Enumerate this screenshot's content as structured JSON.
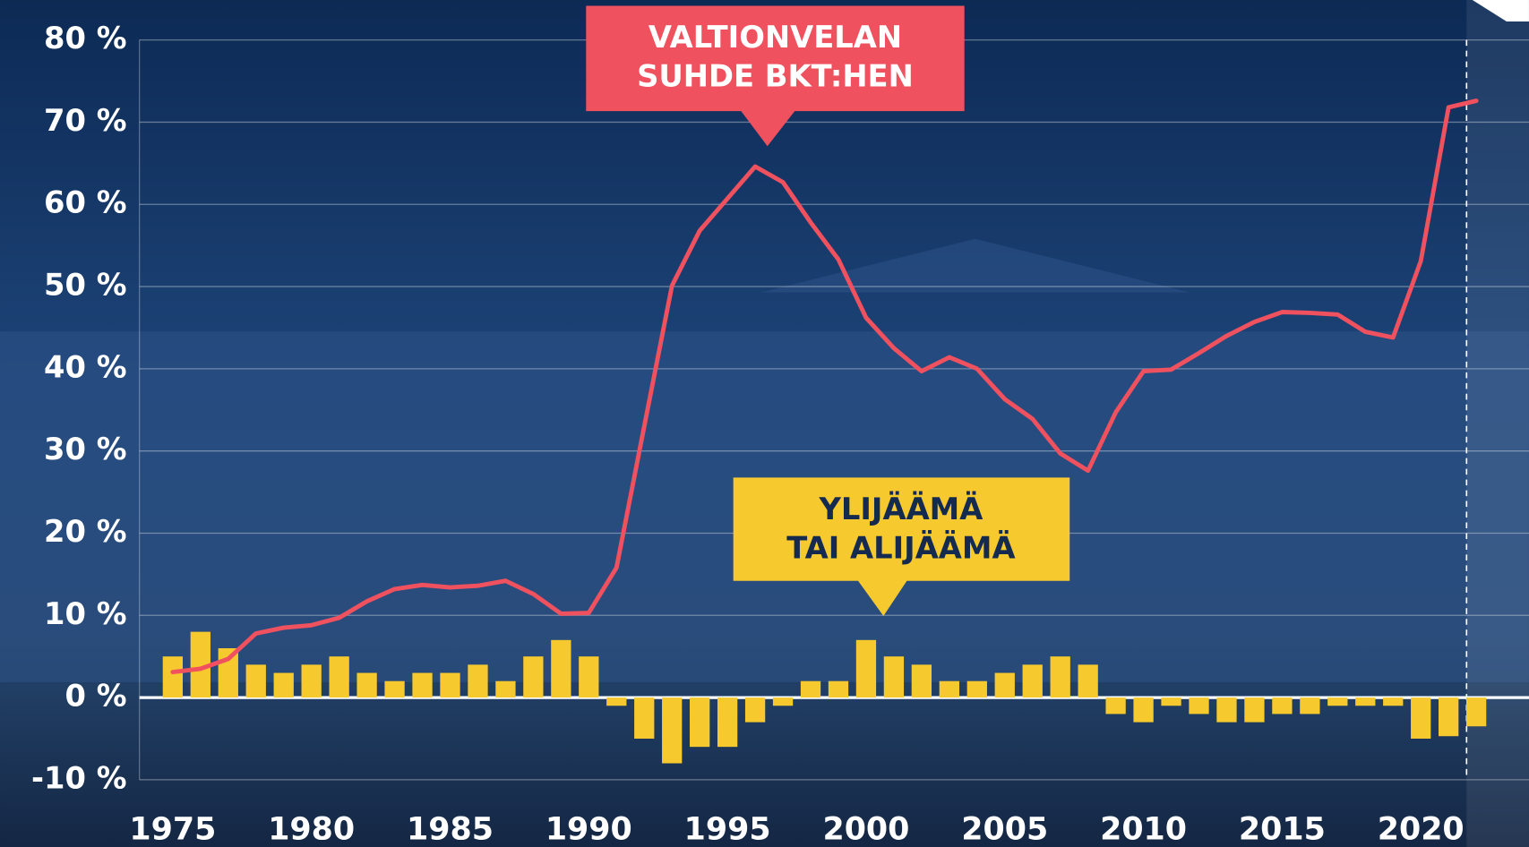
{
  "chart_data": {
    "type": "combo",
    "x": [
      1975,
      1976,
      1977,
      1978,
      1979,
      1980,
      1981,
      1982,
      1983,
      1984,
      1985,
      1986,
      1987,
      1988,
      1989,
      1990,
      1991,
      1992,
      1993,
      1994,
      1995,
      1996,
      1997,
      1998,
      1999,
      2000,
      2001,
      2002,
      2003,
      2004,
      2005,
      2006,
      2007,
      2008,
      2009,
      2010,
      2011,
      2012,
      2013,
      2014,
      2015,
      2016,
      2017,
      2018,
      2019,
      2020,
      2021,
      2022
    ],
    "series": [
      {
        "name": [
          "VALTIONVELAN",
          "SUHDE BKT:HEN"
        ],
        "kind": "line",
        "color": "#f0515f",
        "values": [
          3.1,
          3.5,
          4.7,
          7.8,
          8.5,
          8.8,
          9.7,
          11.7,
          13.2,
          13.7,
          13.4,
          13.6,
          14.2,
          12.6,
          10.2,
          10.3,
          15.8,
          33,
          50.1,
          56.8,
          60.7,
          64.6,
          62.7,
          57.8,
          53.3,
          46.2,
          42.5,
          39.7,
          41.4,
          40,
          36.3,
          33.9,
          29.7,
          27.6,
          34.7,
          39.7,
          39.9,
          41.9,
          44,
          45.7,
          46.9,
          46.8,
          46.6,
          44.5,
          43.8,
          53.1,
          71.8,
          72.6
        ]
      },
      {
        "name": [
          "YLIJÄÄMÄ",
          "TAI ALIJÄÄMÄ"
        ],
        "kind": "bar",
        "color": "#f6c92e",
        "values": [
          5,
          8,
          6,
          4,
          3,
          4,
          5,
          3,
          2,
          3,
          3,
          4,
          2,
          5,
          7,
          5,
          -1,
          -5,
          -8,
          -6,
          -6,
          -3,
          -1,
          2,
          2,
          7,
          5,
          4,
          2,
          2,
          3,
          4,
          5,
          4,
          -2,
          -3,
          -1,
          -2,
          -3,
          -3,
          -2,
          -2,
          -1,
          -1,
          -1,
          -5,
          -4.7,
          -3.5
        ]
      }
    ],
    "xlim": [
      1973.8,
      2023.9
    ],
    "xticks": [
      1975,
      1980,
      1985,
      1990,
      1995,
      2000,
      2005,
      2010,
      2015,
      2020
    ],
    "ylim": [
      -10,
      80
    ],
    "yticks": [
      {
        "value": -10,
        "label": "-10 %"
      },
      {
        "value": 0,
        "label": "0 %"
      },
      {
        "value": 10,
        "label": "10 %"
      },
      {
        "value": 20,
        "label": "20 %"
      },
      {
        "value": 30,
        "label": "30 %"
      },
      {
        "value": 40,
        "label": "40 %"
      },
      {
        "value": 50,
        "label": "50 %"
      },
      {
        "value": 60,
        "label": "60 %"
      },
      {
        "value": 70,
        "label": "70 %"
      },
      {
        "value": 80,
        "label": "80 %"
      }
    ],
    "grid": true
  }
}
